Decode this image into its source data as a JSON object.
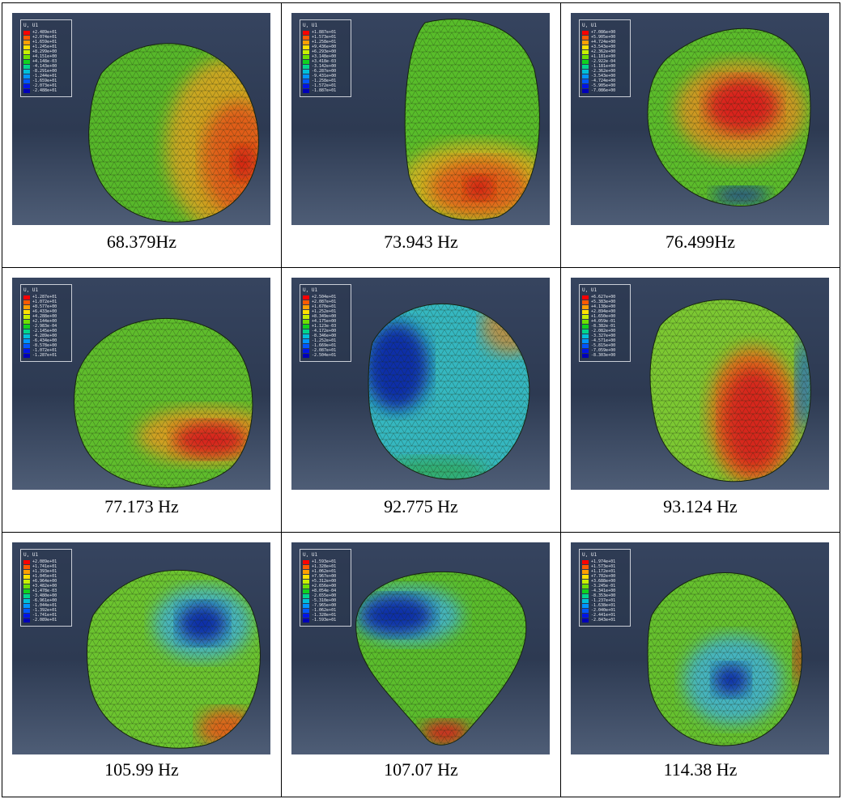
{
  "legend_title": "U, U1",
  "legend_colors": [
    "#ff0000",
    "#ff5a00",
    "#ff9f00",
    "#ffe100",
    "#c7f000",
    "#6de000",
    "#10d21f",
    "#00d58d",
    "#00c0d8",
    "#0095ff",
    "#0055ff",
    "#0014e6",
    "#0000b8"
  ],
  "panels": [
    {
      "caption": "68.379Hz",
      "legend": [
        "+2.489e+01",
        "+2.074e+01",
        "+1.659e+01",
        "+1.245e+01",
        "+8.299e+00",
        "+4.151e+00",
        "+4.148e-03",
        "-4.143e+00",
        "-8.291e+00",
        "-1.244e+01",
        "-1.659e+01",
        "-2.073e+01",
        "-2.488e+01"
      ]
    },
    {
      "caption": "73.943 Hz",
      "legend": [
        "+1.887e+01",
        "+1.573e+01",
        "+1.258e+01",
        "+9.436e+00",
        "+6.293e+00",
        "+3.148e+00",
        "+3.418e-03",
        "-3.142e+00",
        "-6.287e+00",
        "-9.431e+00",
        "-1.258e+01",
        "-1.572e+01",
        "-1.887e+01"
      ]
    },
    {
      "caption": "76.499Hz",
      "legend": [
        "+7.086e+00",
        "+5.905e+00",
        "+4.724e+00",
        "+3.543e+00",
        "+2.362e+00",
        "+1.181e+00",
        "-2.922e-04",
        "-1.181e+00",
        "-2.362e+00",
        "-3.543e+00",
        "-4.724e+00",
        "-5.905e+00",
        "-7.086e+00"
      ]
    },
    {
      "caption": "77.173 Hz",
      "legend": [
        "+1.287e+01",
        "+1.072e+01",
        "+8.577e+00",
        "+6.433e+00",
        "+4.288e+00",
        "+2.144e+00",
        "-2.983e-04",
        "-2.145e+00",
        "-4.289e+00",
        "-6.434e+00",
        "-8.578e+00",
        "-1.072e+01",
        "-1.287e+01"
      ]
    },
    {
      "caption": "92.775 Hz",
      "legend": [
        "+2.504e+01",
        "+2.087e+01",
        "+1.670e+01",
        "+1.252e+01",
        "+8.349e+00",
        "+4.175e+00",
        "+1.123e-03",
        "-4.172e+00",
        "-8.346e+00",
        "-1.252e+01",
        "-1.669e+01",
        "-2.087e+01",
        "-2.504e+01"
      ]
    },
    {
      "caption": "93.124 Hz",
      "legend": [
        "+6.627e+00",
        "+5.383e+00",
        "+4.138e+00",
        "+2.894e+00",
        "+1.650e+00",
        "+4.059e-01",
        "-8.382e-01",
        "-2.082e+00",
        "-3.327e+00",
        "-4.571e+00",
        "-5.815e+00",
        "-7.059e+00",
        "-8.303e+00"
      ]
    },
    {
      "caption": "105.99 Hz",
      "legend": [
        "+2.089e+01",
        "+1.741e+01",
        "+1.393e+01",
        "+1.045e+01",
        "+6.964e+00",
        "+3.482e+00",
        "+1.478e-03",
        "-3.480e+00",
        "-6.961e+00",
        "-1.044e+01",
        "-1.392e+01",
        "-1.741e+01",
        "-2.089e+01"
      ]
    },
    {
      "caption": "107.07 Hz",
      "legend": [
        "+1.593e+01",
        "+1.328e+01",
        "+1.062e+01",
        "+7.967e+00",
        "+5.312e+00",
        "+2.656e+00",
        "+8.054e-04",
        "-2.655e+00",
        "-5.310e+00",
        "-7.965e+00",
        "-1.062e+01",
        "-1.328e+01",
        "-1.593e+01"
      ]
    },
    {
      "caption": "114.38 Hz",
      "legend": [
        "+1.974e+01",
        "+1.573e+01",
        "+1.172e+01",
        "+7.702e+00",
        "+3.688e+00",
        "-3.245e-01",
        "-4.341e+00",
        "-8.353e+00",
        "-1.237e+01",
        "-1.638e+01",
        "-2.040e+01",
        "-2.441e+01",
        "-2.843e+01"
      ]
    }
  ]
}
